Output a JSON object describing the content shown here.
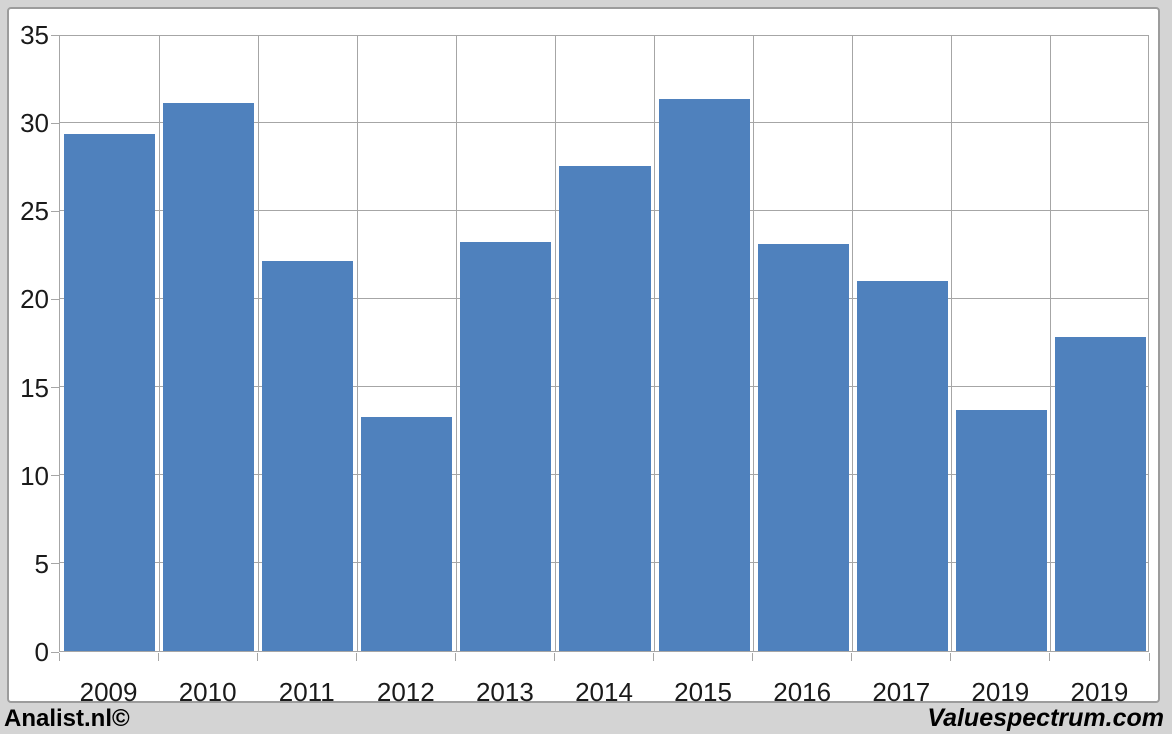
{
  "chart_data": {
    "type": "bar",
    "title": "",
    "xlabel": "",
    "ylabel": "",
    "categories": [
      "2009",
      "2010",
      "2011",
      "2012",
      "2013",
      "2014",
      "2015",
      "2016",
      "2017",
      "2019",
      "2019"
    ],
    "values": [
      29.3,
      31.1,
      22.1,
      13.3,
      23.2,
      27.5,
      31.3,
      23.1,
      21.0,
      13.7,
      17.8
    ],
    "ylim": [
      0,
      35
    ],
    "yticks": [
      0,
      5,
      10,
      15,
      20,
      25,
      30,
      35
    ],
    "grid": "horizontal and vertical gridlines",
    "legend": "none",
    "bar_color": "#4f81bd",
    "gridline_color": "#a6a6a6",
    "plot_bg": "#ffffff",
    "page_bg": "#d4d4d4"
  },
  "footer": {
    "left_brand": "Analist.nl©",
    "right_brand": "Valuespectrum.com"
  }
}
